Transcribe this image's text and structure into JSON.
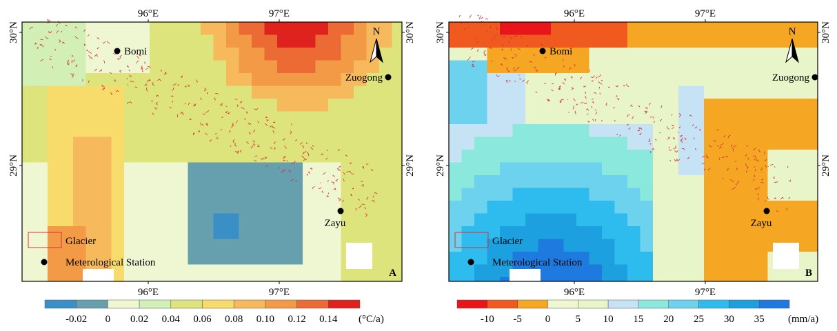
{
  "panels": [
    {
      "letter": "A",
      "lon_labels": [
        "96°E",
        "97°E"
      ],
      "lat_labels": [
        "30°N",
        "29°N"
      ],
      "stations": [
        "Bomi",
        "Zuogong",
        "Zayu"
      ],
      "legend": [
        "Glacier",
        "Meterological Station"
      ],
      "north": "N",
      "colorbar": {
        "labels": [
          "-0.02",
          "0",
          "0.02",
          "0.04",
          "0.06",
          "0.08",
          "0.10",
          "0.12",
          "0.14"
        ],
        "unit": "(°C/a)"
      }
    },
    {
      "letter": "B",
      "lon_labels": [
        "96°E",
        "97°E"
      ],
      "lat_labels": [
        "30°N",
        "29°N"
      ],
      "stations": [
        "Bomi",
        "Zuogong",
        "Zayu"
      ],
      "legend": [
        "Glacier",
        "Meterological Station"
      ],
      "north": "N",
      "colorbar": {
        "labels": [
          "-10",
          "-5",
          "0",
          "5",
          "10",
          "15",
          "20",
          "25",
          "30",
          "35"
        ],
        "unit": "(mm/a)"
      }
    }
  ]
}
